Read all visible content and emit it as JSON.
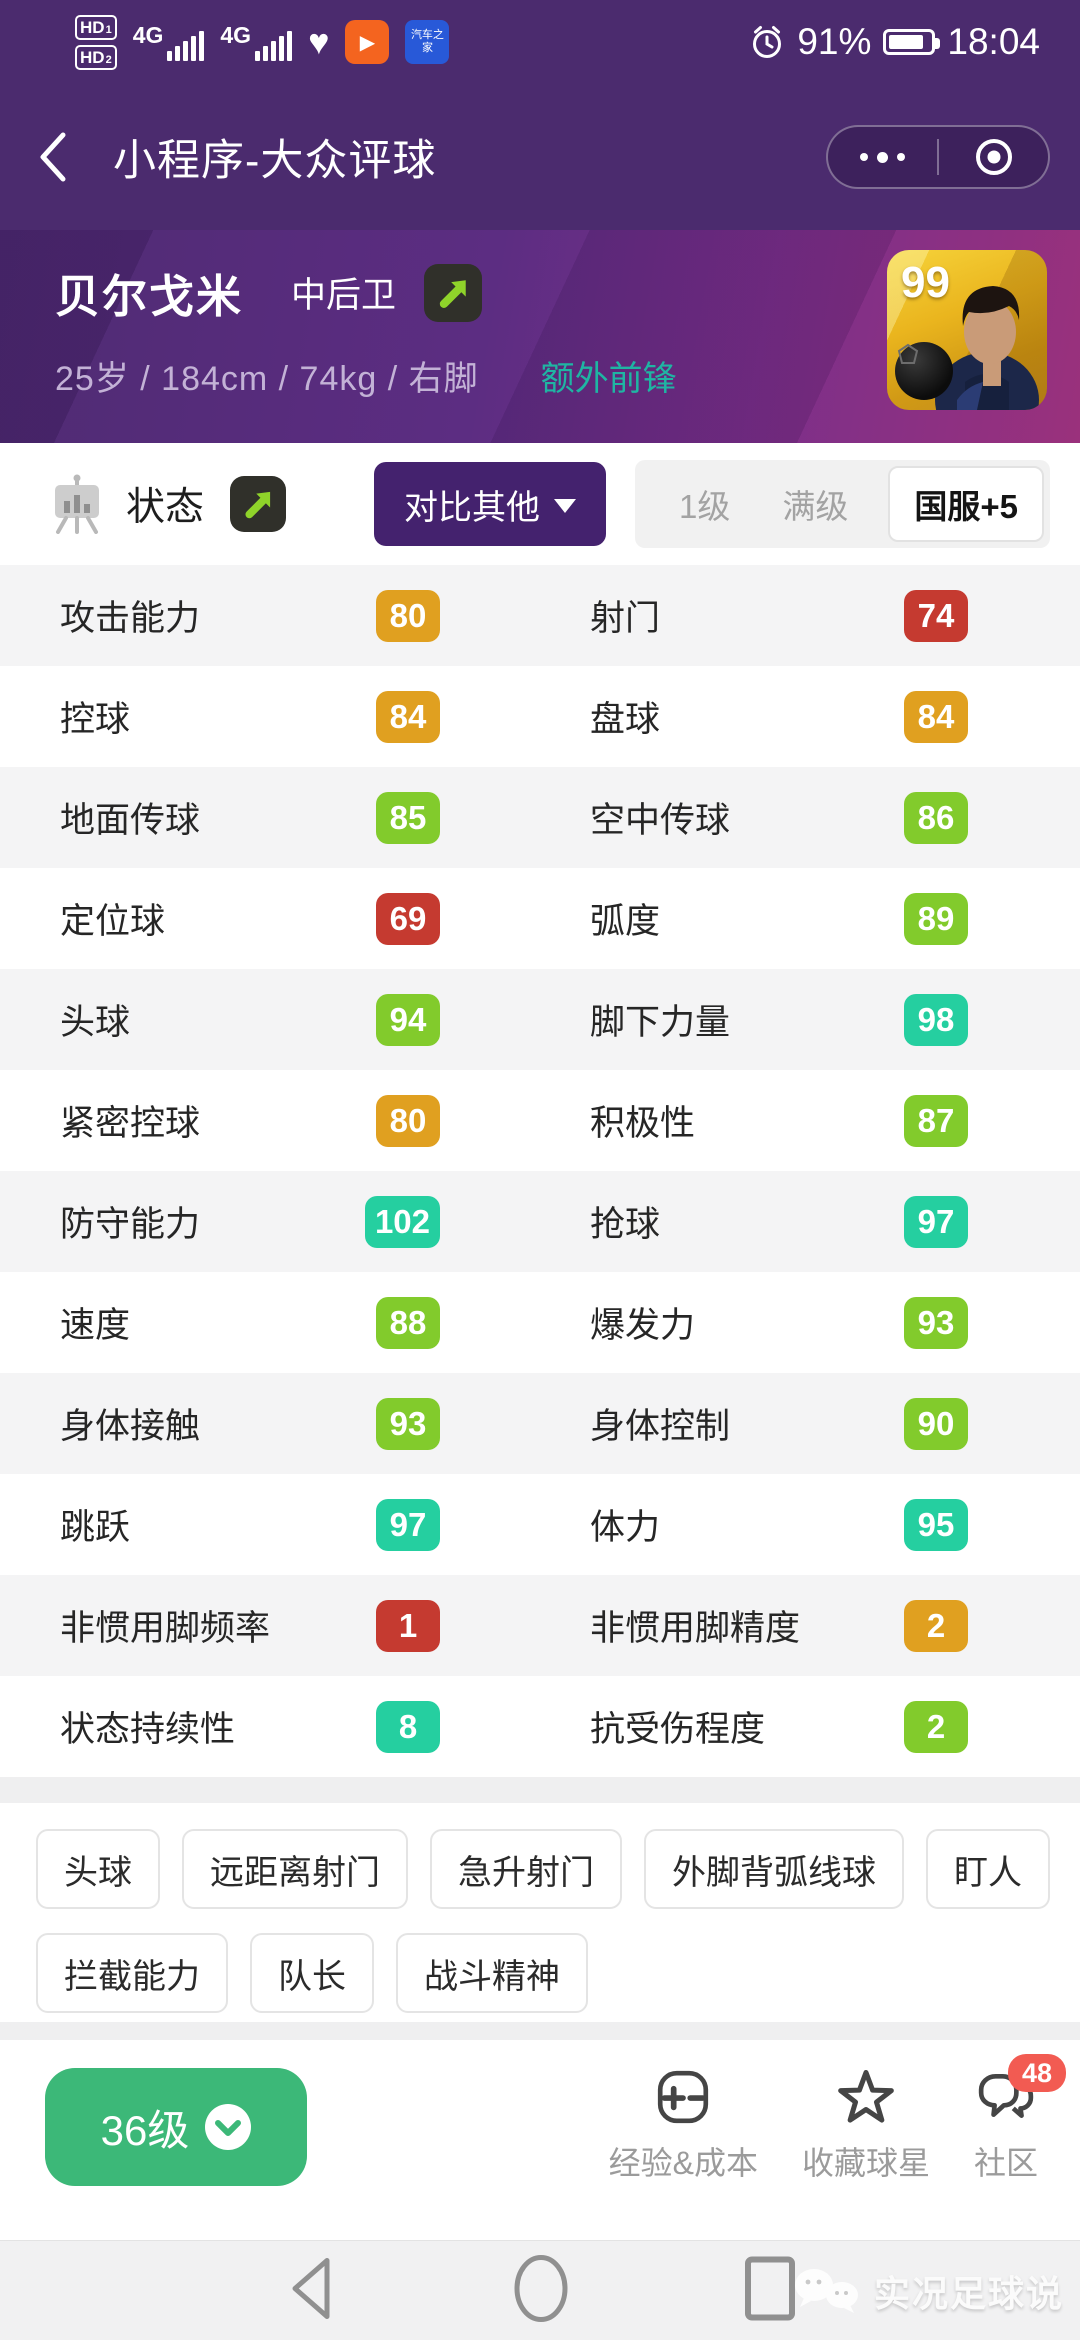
{
  "status_bar": {
    "hd": [
      {
        "label": "HD",
        "sub": "1"
      },
      {
        "label": "HD",
        "sub": "2"
      }
    ],
    "network": "4G",
    "battery_percent": "91%",
    "time": "18:04",
    "blue_app_text": "汽车之家"
  },
  "nav": {
    "title": "小程序-大众评球"
  },
  "player": {
    "name": "贝尔戈米",
    "position": "中后卫",
    "info": "25岁 / 184cm / 74kg / 右脚",
    "special": "额外前锋",
    "rating": "99"
  },
  "status_section": {
    "title": "状态",
    "compare_button": "对比其他",
    "tabs": [
      {
        "label": "1级",
        "selected": false
      },
      {
        "label": "满级",
        "selected": false
      },
      {
        "label": "国服+5",
        "selected": true
      }
    ]
  },
  "stats": {
    "rows": [
      {
        "left": {
          "label": "攻击能力",
          "value": "80",
          "tier": "orange"
        },
        "right": {
          "label": "射门",
          "value": "74",
          "tier": "red"
        }
      },
      {
        "left": {
          "label": "控球",
          "value": "84",
          "tier": "orange"
        },
        "right": {
          "label": "盘球",
          "value": "84",
          "tier": "orange"
        }
      },
      {
        "left": {
          "label": "地面传球",
          "value": "85",
          "tier": "green"
        },
        "right": {
          "label": "空中传球",
          "value": "86",
          "tier": "green"
        }
      },
      {
        "left": {
          "label": "定位球",
          "value": "69",
          "tier": "red"
        },
        "right": {
          "label": "弧度",
          "value": "89",
          "tier": "green"
        }
      },
      {
        "left": {
          "label": "头球",
          "value": "94",
          "tier": "green"
        },
        "right": {
          "label": "脚下力量",
          "value": "98",
          "tier": "teal"
        }
      },
      {
        "left": {
          "label": "紧密控球",
          "value": "80",
          "tier": "orange"
        },
        "right": {
          "label": "积极性",
          "value": "87",
          "tier": "green"
        }
      },
      {
        "left": {
          "label": "防守能力",
          "value": "102",
          "tier": "teal"
        },
        "right": {
          "label": "抢球",
          "value": "97",
          "tier": "teal"
        }
      },
      {
        "left": {
          "label": "速度",
          "value": "88",
          "tier": "green"
        },
        "right": {
          "label": "爆发力",
          "value": "93",
          "tier": "green"
        }
      },
      {
        "left": {
          "label": "身体接触",
          "value": "93",
          "tier": "green"
        },
        "right": {
          "label": "身体控制",
          "value": "90",
          "tier": "green"
        }
      },
      {
        "left": {
          "label": "跳跃",
          "value": "97",
          "tier": "teal"
        },
        "right": {
          "label": "体力",
          "value": "95",
          "tier": "teal"
        }
      },
      {
        "left": {
          "label": "非惯用脚频率",
          "value": "1",
          "tier": "red"
        },
        "right": {
          "label": "非惯用脚精度",
          "value": "2",
          "tier": "orange"
        }
      },
      {
        "left": {
          "label": "状态持续性",
          "value": "8",
          "tier": "teal"
        },
        "right": {
          "label": "抗受伤程度",
          "value": "2",
          "tier": "green"
        }
      }
    ]
  },
  "skills": [
    "头球",
    "远距离射门",
    "急升射门",
    "外脚背弧线球",
    "盯人",
    "拦截能力",
    "队长",
    "战斗精神"
  ],
  "bottom_bar": {
    "level_button": "36级",
    "actions": [
      {
        "label": "经验&成本",
        "icon": "plus-minus-icon"
      },
      {
        "label": "收藏球星",
        "icon": "star-icon"
      },
      {
        "label": "社区",
        "icon": "community-icon",
        "badge": "48"
      }
    ]
  },
  "watermark": "实况足球说",
  "colors": {
    "header_purple": "#4b2b6e",
    "compare_button_purple": "#44226e",
    "special_teal": "#1fb5a3",
    "tier_orange": "#e0a020",
    "tier_red": "#c53a30",
    "tier_green": "#82cb2c",
    "tier_teal": "#25cfa0",
    "level_button_green": "#3cb878",
    "count_badge_red": "#f25b52",
    "lime_arrow": "#8fd32a"
  }
}
